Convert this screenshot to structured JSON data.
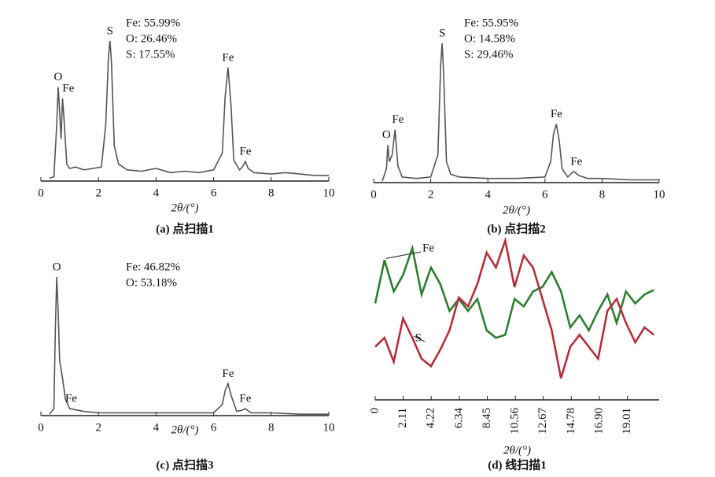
{
  "chart_data": [
    {
      "type": "line",
      "title": "(a) 点扫描1",
      "x_label": "2θ/(°)",
      "xlim": [
        0,
        10
      ],
      "xticks": [
        0,
        2,
        4,
        6,
        8,
        10
      ],
      "ylim": [
        0,
        100
      ],
      "color": "#555555",
      "annotations": [
        "Fe: 55.99%",
        "O: 26.46%",
        "S: 17.55%"
      ],
      "peak_labels": [
        {
          "text": "O",
          "x": 0.6
        },
        {
          "text": "Fe",
          "x": 0.95
        },
        {
          "text": "S",
          "x": 2.4
        },
        {
          "text": "Fe",
          "x": 6.5
        },
        {
          "text": "Fe",
          "x": 7.1
        }
      ],
      "x": [
        0.3,
        0.45,
        0.55,
        0.6,
        0.65,
        0.7,
        0.75,
        0.8,
        0.9,
        1.0,
        1.2,
        1.5,
        1.8,
        2.1,
        2.25,
        2.35,
        2.4,
        2.45,
        2.55,
        2.7,
        3,
        3.5,
        4,
        4.5,
        5,
        5.5,
        6,
        6.3,
        6.4,
        6.5,
        6.6,
        6.7,
        6.9,
        7.0,
        7.1,
        7.2,
        7.4,
        8,
        8.5,
        9,
        9.5,
        10
      ],
      "values": [
        2,
        3,
        40,
        67,
        50,
        30,
        59,
        45,
        12,
        9,
        10,
        8,
        9,
        10,
        40,
        90,
        100,
        85,
        25,
        12,
        8,
        7,
        9,
        6,
        7,
        6,
        8,
        20,
        60,
        81,
        55,
        15,
        8,
        10,
        14,
        9,
        6,
        5,
        6,
        5,
        4,
        4
      ]
    },
    {
      "type": "line",
      "title": "(b) 点扫描2",
      "x_label": "2θ/(°)",
      "xlim": [
        0,
        10
      ],
      "xticks": [
        0,
        2,
        4,
        6,
        8,
        10
      ],
      "ylim": [
        0,
        100
      ],
      "color": "#555555",
      "annotations": [
        "Fe: 55.95%",
        "O: 14.58%",
        "S: 29.46%"
      ],
      "peak_labels": [
        {
          "text": "O",
          "x": 0.45
        },
        {
          "text": "Fe",
          "x": 0.85
        },
        {
          "text": "S",
          "x": 2.4
        },
        {
          "text": "Fe",
          "x": 6.4
        },
        {
          "text": "Fe",
          "x": 7.1
        }
      ],
      "x": [
        0.3,
        0.45,
        0.5,
        0.55,
        0.65,
        0.75,
        0.85,
        1.0,
        1.5,
        2.0,
        2.25,
        2.35,
        2.4,
        2.45,
        2.55,
        2.7,
        3,
        4,
        5,
        6,
        6.2,
        6.3,
        6.4,
        6.5,
        6.6,
        6.8,
        7.0,
        7.2,
        7.5,
        8,
        9,
        10
      ],
      "values": [
        1,
        10,
        27,
        15,
        20,
        38,
        12,
        4,
        3,
        4,
        20,
        85,
        100,
        80,
        15,
        6,
        4,
        3,
        3,
        4,
        15,
        35,
        42,
        30,
        10,
        4,
        8,
        5,
        3,
        3,
        2,
        2
      ]
    },
    {
      "type": "line",
      "title": "(c) 点扫描3",
      "x_label": "2θ/(°)",
      "xlim": [
        0,
        10
      ],
      "xticks": [
        0,
        2,
        4,
        6,
        8,
        10
      ],
      "ylim": [
        0,
        100
      ],
      "color": "#555555",
      "annotations": [
        "Fe: 46.82%",
        "O: 53.18%"
      ],
      "peak_labels": [
        {
          "text": "O",
          "x": 0.55
        },
        {
          "text": "Fe",
          "x": 1.05
        },
        {
          "text": "Fe",
          "x": 6.5
        },
        {
          "text": "Fe",
          "x": 7.1
        }
      ],
      "x": [
        0.3,
        0.45,
        0.5,
        0.55,
        0.6,
        0.65,
        0.75,
        0.85,
        1.0,
        1.5,
        2,
        3,
        4,
        5,
        6,
        6.3,
        6.4,
        6.5,
        6.6,
        6.8,
        7.0,
        7.1,
        7.3,
        8,
        9,
        10
      ],
      "values": [
        1,
        5,
        60,
        100,
        75,
        40,
        27,
        12,
        5,
        3,
        2,
        2,
        2,
        2,
        2,
        8,
        18,
        23,
        15,
        3,
        4,
        5,
        2,
        2,
        1,
        1
      ]
    },
    {
      "type": "line",
      "title": "(d) 线扫描1",
      "x_label": "2θ/(°)",
      "xlim": [
        0,
        21.4
      ],
      "ylim": [
        0,
        100
      ],
      "xticks": [
        0,
        2.11,
        4.22,
        6.34,
        8.45,
        10.56,
        12.67,
        14.78,
        {
          "value": 16.9,
          "label": "16.90"
        },
        19.01
      ],
      "x": [
        0,
        0.7,
        1.4,
        2.1,
        2.8,
        3.5,
        4.2,
        4.9,
        5.6,
        6.3,
        7,
        7.7,
        8.4,
        9.1,
        9.8,
        10.5,
        11.2,
        11.9,
        12.6,
        13.3,
        14,
        14.7,
        15.4,
        16.1,
        16.8,
        17.5,
        18.2,
        18.9,
        19.6,
        20.3,
        21
      ],
      "series": [
        {
          "name": "Fe",
          "color": "#2e7d32",
          "values": [
            55,
            84,
            63,
            74,
            92,
            61,
            79,
            68,
            50,
            58,
            50,
            58,
            37,
            32,
            34,
            58,
            53,
            63,
            66,
            76,
            63,
            39,
            47,
            37,
            50,
            61,
            42,
            63,
            55,
            61,
            64
          ]
        },
        {
          "name": "S",
          "color": "#b3303c",
          "values": [
            26,
            32,
            16,
            45,
            32,
            18,
            13,
            24,
            37,
            59,
            53,
            68,
            89,
            79,
            97,
            66,
            87,
            79,
            58,
            37,
            5,
            26,
            34,
            26,
            18,
            50,
            58,
            42,
            29,
            39,
            34
          ]
        }
      ]
    }
  ]
}
